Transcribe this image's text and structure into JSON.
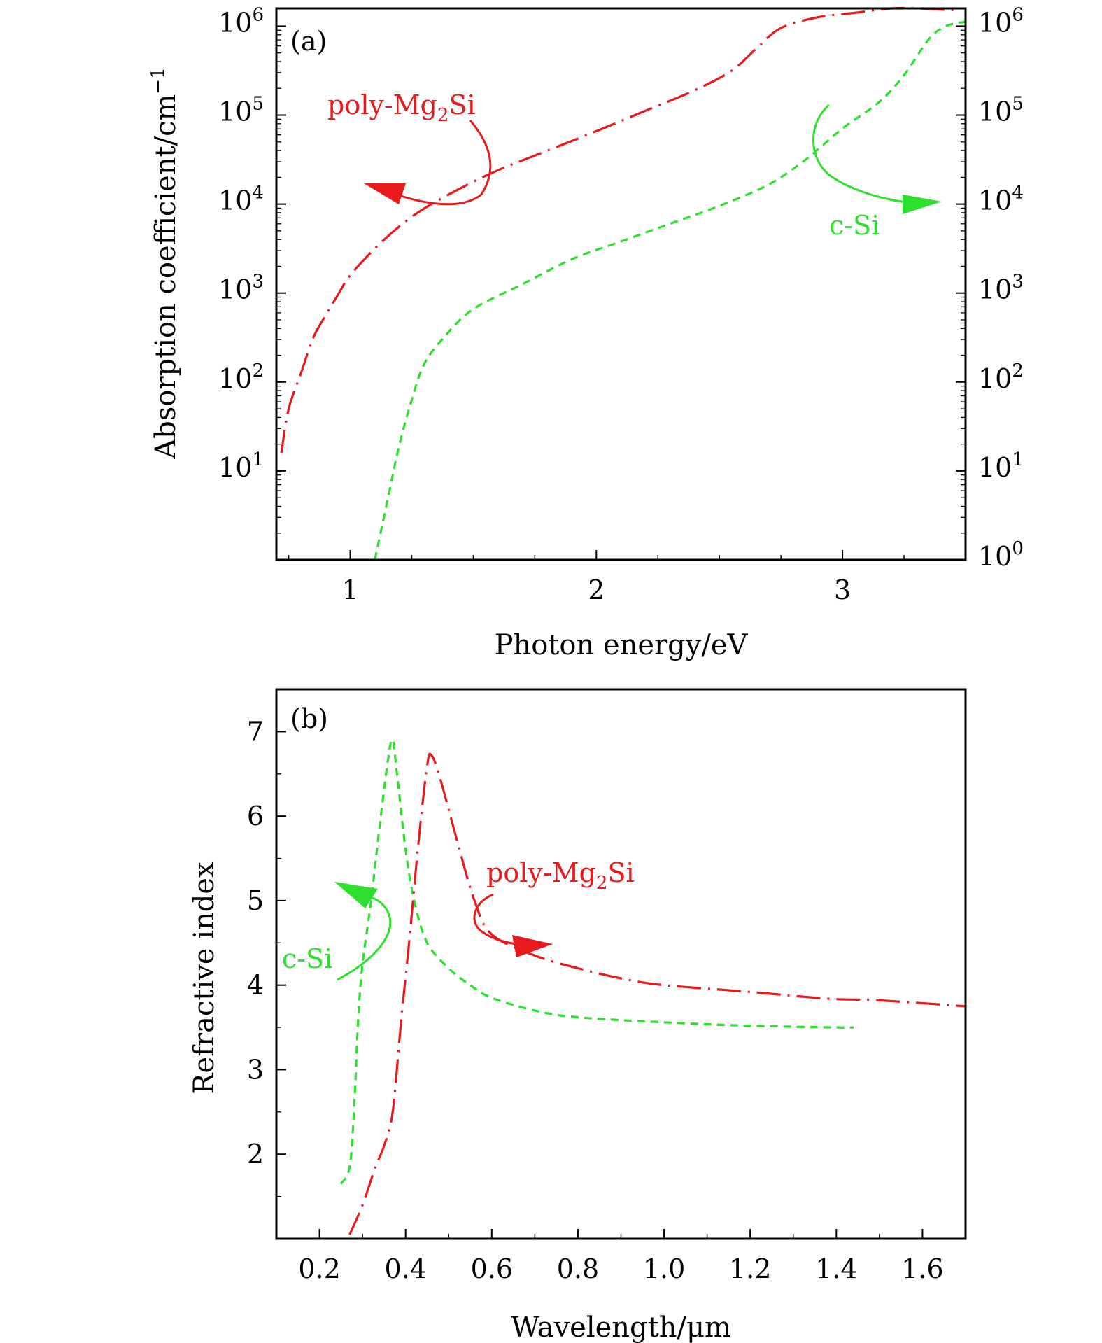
{
  "chart_data": [
    {
      "id": "a",
      "type": "line",
      "panel_label": "(a)",
      "xlabel": "Photon energy/eV",
      "ylabel": "Absorption coefficient/cm",
      "ylabel_sup": "−1",
      "yscale": "log",
      "xlim": [
        0.7,
        3.5
      ],
      "ylim_log10": [
        0,
        6.2
      ],
      "xticks": [
        1,
        2,
        3
      ],
      "xtick_labels": [
        "1",
        "2",
        "3"
      ],
      "yticks_log10_left": [
        1,
        2,
        3,
        4,
        5,
        6
      ],
      "yticks_log10_right": [
        0,
        1,
        2,
        3,
        4,
        5,
        6
      ],
      "ytick_base": "10",
      "series": [
        {
          "name": "poly-Mg2Si",
          "color": "#e8191d",
          "style": "dash-dot",
          "x": [
            0.72,
            0.75,
            0.8,
            0.85,
            0.9,
            0.95,
            1.0,
            1.1,
            1.2,
            1.3,
            1.45,
            1.6,
            1.8,
            2.0,
            2.2,
            2.4,
            2.55,
            2.65,
            2.75,
            2.9,
            3.05,
            3.2,
            3.3,
            3.45
          ],
          "y_log10": [
            1.2,
            1.7,
            2.1,
            2.5,
            2.75,
            2.98,
            3.2,
            3.5,
            3.75,
            3.95,
            4.18,
            4.38,
            4.6,
            4.82,
            5.05,
            5.28,
            5.5,
            5.75,
            5.98,
            6.1,
            6.15,
            6.2,
            6.2,
            6.18
          ]
        },
        {
          "name": "c-Si",
          "color": "#2ee02e",
          "style": "dashed",
          "x": [
            1.1,
            1.15,
            1.2,
            1.25,
            1.3,
            1.38,
            1.5,
            1.7,
            1.9,
            2.1,
            2.3,
            2.5,
            2.7,
            2.85,
            3.0,
            3.15,
            3.25,
            3.35,
            3.42,
            3.5
          ],
          "y_log10": [
            0.0,
            0.65,
            1.3,
            1.8,
            2.2,
            2.5,
            2.82,
            3.1,
            3.38,
            3.58,
            3.78,
            3.98,
            4.22,
            4.5,
            4.85,
            5.15,
            5.45,
            5.85,
            6.0,
            6.05
          ]
        }
      ],
      "annotations": [
        {
          "text": "poly-Mg",
          "sub": "2",
          "tail": "Si",
          "color": "#e8191d",
          "series": "poly-Mg2Si"
        },
        {
          "text": "c-Si",
          "sub": "",
          "tail": "",
          "color": "#2ee02e",
          "series": "c-Si"
        }
      ]
    },
    {
      "id": "b",
      "type": "line",
      "panel_label": "(b)",
      "xlabel": "Wavelength/μm",
      "ylabel": "Refractive index",
      "xlim": [
        0.1,
        1.7
      ],
      "ylim": [
        1.0,
        7.5
      ],
      "xticks": [
        0.2,
        0.4,
        0.6,
        0.8,
        1.0,
        1.2,
        1.4,
        1.6
      ],
      "xtick_labels": [
        "0.2",
        "0.4",
        "0.6",
        "0.8",
        "1.0",
        "1.2",
        "1.4",
        "1.6"
      ],
      "yticks": [
        2,
        3,
        4,
        5,
        6,
        7
      ],
      "ytick_labels": [
        "2",
        "3",
        "4",
        "5",
        "6",
        "7"
      ],
      "series": [
        {
          "name": "c-Si",
          "color": "#2ee02e",
          "style": "dashed",
          "x": [
            0.25,
            0.27,
            0.28,
            0.29,
            0.3,
            0.32,
            0.34,
            0.36,
            0.37,
            0.38,
            0.4,
            0.42,
            0.45,
            0.5,
            0.55,
            0.6,
            0.7,
            0.8,
            1.0,
            1.2,
            1.4,
            1.44
          ],
          "y": [
            1.65,
            1.85,
            2.5,
            3.6,
            4.25,
            5.0,
            5.9,
            6.7,
            6.9,
            6.5,
            5.6,
            5.0,
            4.5,
            4.2,
            4.0,
            3.85,
            3.7,
            3.62,
            3.56,
            3.52,
            3.5,
            3.5
          ]
        },
        {
          "name": "poly-Mg2Si",
          "color": "#e8191d",
          "style": "dash-dot",
          "x": [
            0.27,
            0.3,
            0.33,
            0.35,
            0.37,
            0.39,
            0.41,
            0.43,
            0.45,
            0.46,
            0.48,
            0.52,
            0.56,
            0.6,
            0.7,
            0.8,
            0.9,
            1.0,
            1.2,
            1.38,
            1.5,
            1.7
          ],
          "y": [
            1.05,
            1.4,
            1.85,
            2.1,
            2.5,
            3.6,
            4.6,
            5.7,
            6.6,
            6.72,
            6.45,
            5.7,
            5.0,
            4.6,
            4.35,
            4.2,
            4.08,
            4.0,
            3.92,
            3.84,
            3.82,
            3.75
          ]
        }
      ],
      "annotations": [
        {
          "text": "poly-Mg",
          "sub": "2",
          "tail": "Si",
          "color": "#e8191d",
          "series": "poly-Mg2Si"
        },
        {
          "text": "c-Si",
          "sub": "",
          "tail": "",
          "color": "#2ee02e",
          "series": "c-Si"
        }
      ]
    }
  ]
}
